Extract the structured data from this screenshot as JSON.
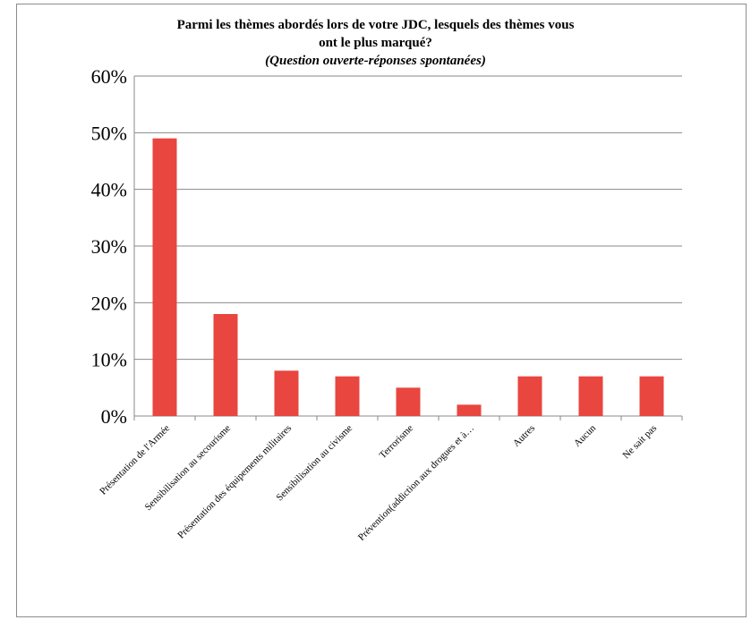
{
  "chart_data": {
    "type": "bar",
    "title": "Parmi les thèmes abordés lors de votre JDC, lesquels des thèmes vous ont le plus marqué?",
    "title_lines": [
      "Parmi les thèmes abordés lors de votre JDC, lesquels des thèmes vous",
      "ont le plus marqué?"
    ],
    "subtitle": "(Question ouverte-réponses spontanées)",
    "categories": [
      "Présentation de l'Armée",
      "Sensibilisation au secourisme",
      "Présentation des équipements militaires",
      "Sensibilisation au civisme",
      "Terrorisme",
      "Prévention(addiction aux drogues et à…",
      "Autres",
      "Aucun",
      "Ne sait pas"
    ],
    "values": [
      49,
      18,
      8,
      7,
      5,
      2,
      7,
      7,
      7
    ],
    "ylim": [
      0,
      60
    ],
    "yticks": [
      0,
      10,
      20,
      30,
      40,
      50,
      60
    ],
    "ytick_labels": [
      "0%",
      "10%",
      "20%",
      "30%",
      "40%",
      "50%",
      "60%"
    ],
    "xlabel": "",
    "ylabel": "",
    "grid": true,
    "bar_color": "#e8463f",
    "grid_color": "#888888"
  }
}
